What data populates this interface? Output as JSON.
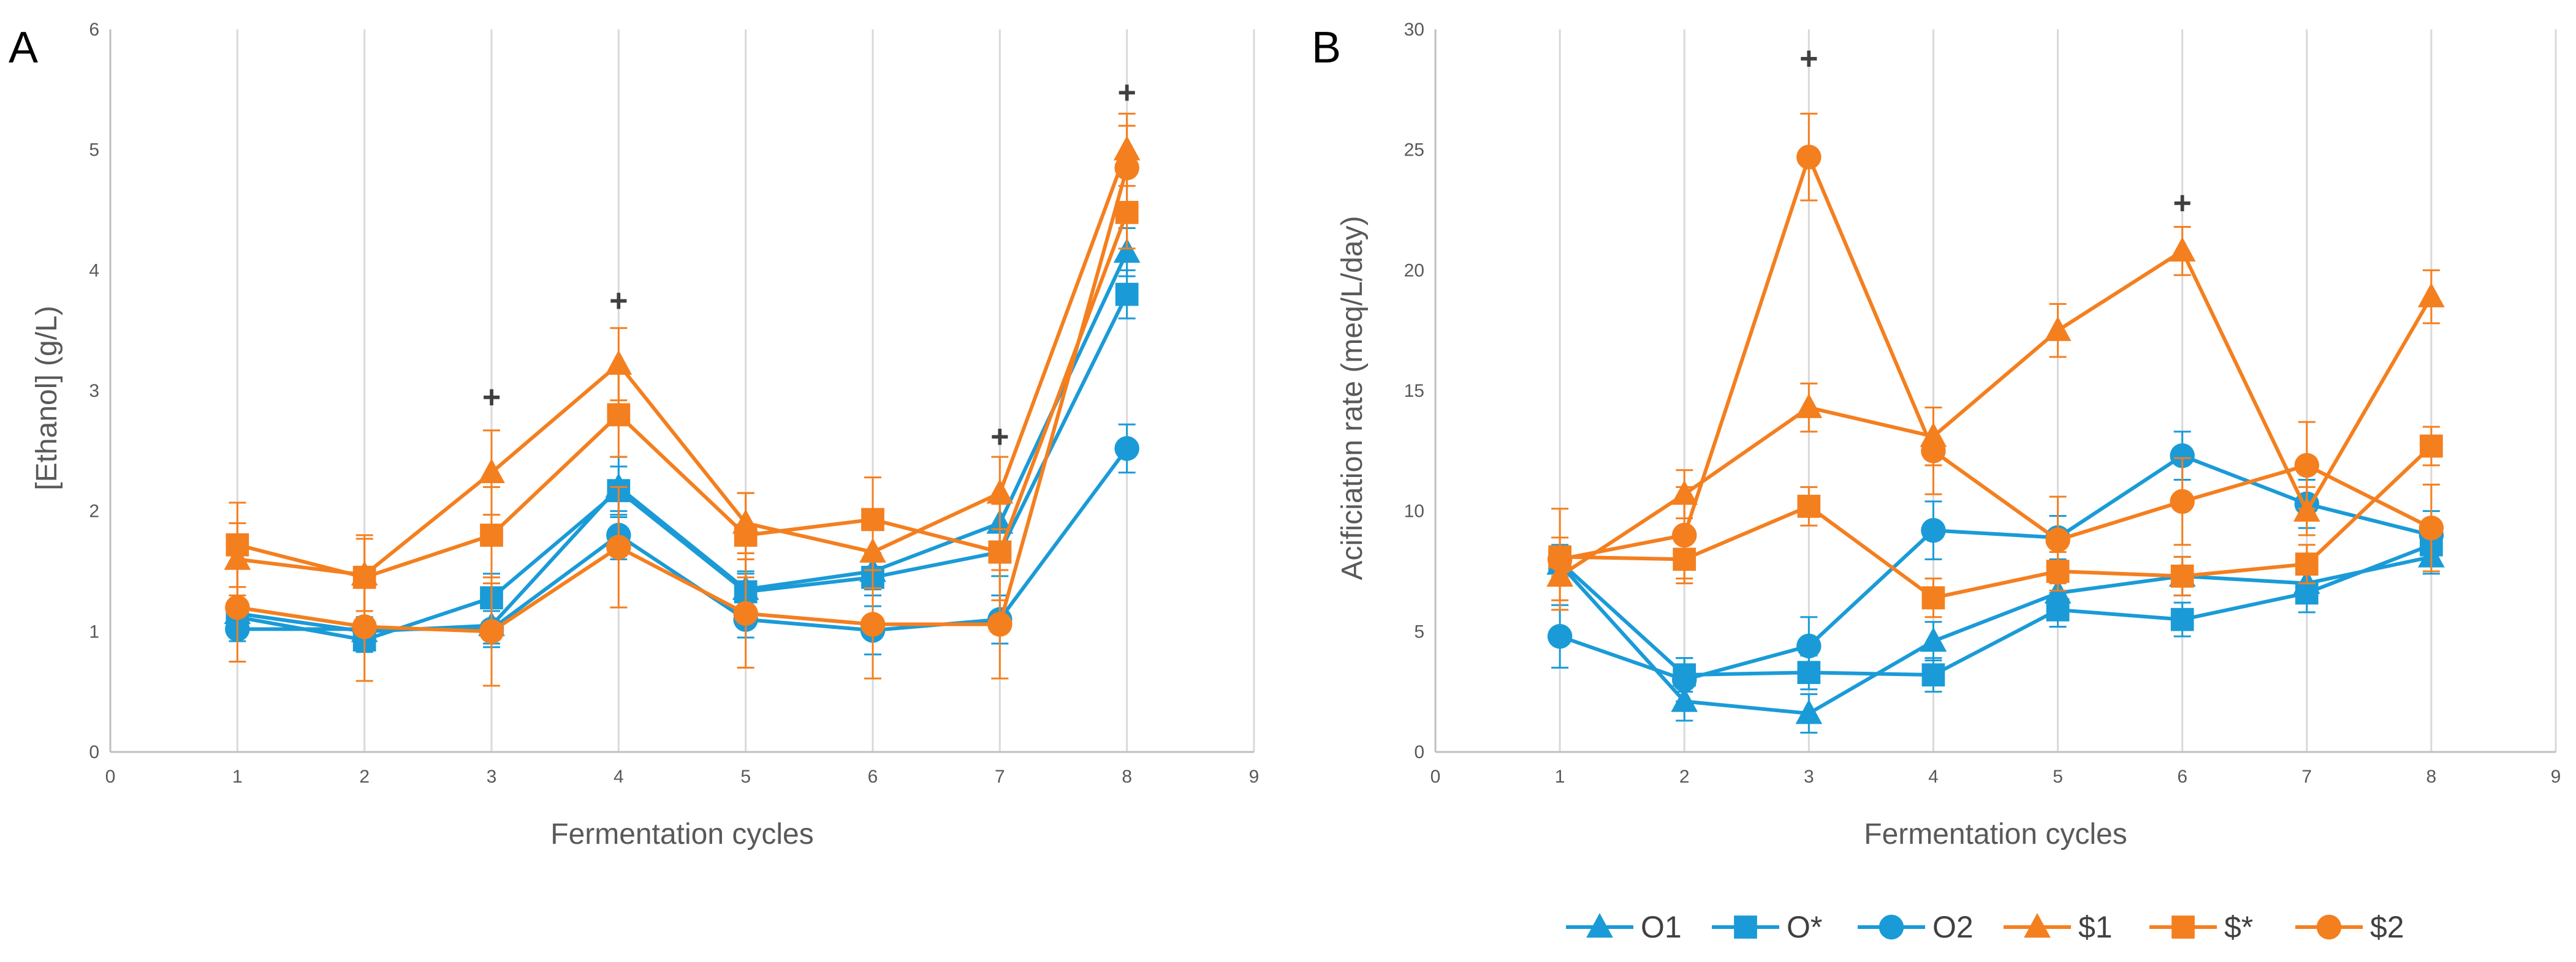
{
  "series_colors": {
    "O1": "#1a9bd7",
    "O*": "#1a9bd7",
    "O2": "#1a9bd7",
    "$1": "#f47f1f",
    "$*": "#f47f1f",
    "$2": "#f47f1f"
  },
  "legend": [
    {
      "name": "O1",
      "marker": "triangle"
    },
    {
      "name": "O*",
      "marker": "square"
    },
    {
      "name": "O2",
      "marker": "circle"
    },
    {
      "name": "$1",
      "marker": "triangle"
    },
    {
      "name": "$*",
      "marker": "square"
    },
    {
      "name": "$2",
      "marker": "circle"
    }
  ],
  "chart_data": [
    {
      "type": "line",
      "panel": "A",
      "xlabel": "Fermentation cycles",
      "ylabel": "[Ethanol] (g/L)",
      "xlim": [
        0,
        9
      ],
      "ylim": [
        0,
        6
      ],
      "xticks": [
        0,
        1,
        2,
        3,
        4,
        5,
        6,
        7,
        8,
        9
      ],
      "yticks": [
        0,
        1,
        2,
        3,
        4,
        5,
        6
      ],
      "grid": "vertical",
      "x": [
        1,
        2,
        3,
        4,
        5,
        6,
        7,
        8
      ],
      "series": [
        {
          "name": "O1",
          "marker": "triangle",
          "values": [
            1.15,
            1.0,
            1.05,
            2.2,
            1.35,
            1.5,
            1.9,
            4.15
          ],
          "errors": [
            0.1,
            0.1,
            0.15,
            0.25,
            0.15,
            0.15,
            0.2,
            0.2
          ]
        },
        {
          "name": "O*",
          "marker": "square",
          "values": [
            1.12,
            0.93,
            1.28,
            2.17,
            1.33,
            1.45,
            1.66,
            3.8
          ],
          "errors": [
            0.1,
            0.1,
            0.2,
            0.2,
            0.15,
            0.15,
            0.2,
            0.2
          ]
        },
        {
          "name": "O2",
          "marker": "circle",
          "values": [
            1.02,
            1.02,
            1.02,
            1.8,
            1.1,
            1.01,
            1.1,
            2.52
          ],
          "errors": [
            0.1,
            0.1,
            0.15,
            0.2,
            0.15,
            0.2,
            0.2,
            0.2
          ]
        },
        {
          "name": "$1",
          "marker": "triangle",
          "values": [
            1.6,
            1.47,
            2.32,
            3.22,
            1.9,
            1.66,
            2.15,
            5.0
          ],
          "errors": [
            0.3,
            0.3,
            0.35,
            0.3,
            0.25,
            0.3,
            0.3,
            0.3
          ]
        },
        {
          "name": "$*",
          "marker": "square",
          "values": [
            1.72,
            1.45,
            1.8,
            2.8,
            1.8,
            1.93,
            1.66,
            4.48
          ],
          "errors": [
            0.35,
            0.35,
            0.4,
            0.35,
            0.35,
            0.35,
            0.4,
            0.3
          ]
        },
        {
          "name": "$2",
          "marker": "circle",
          "values": [
            1.2,
            1.04,
            1.0,
            1.7,
            1.15,
            1.06,
            1.06,
            4.85
          ],
          "errors": [
            0.45,
            0.45,
            0.45,
            0.5,
            0.45,
            0.45,
            0.45,
            0.35
          ]
        }
      ],
      "annotations": [
        {
          "text": "+",
          "x": 3,
          "y": 2.95
        },
        {
          "text": "+",
          "x": 4,
          "y": 3.75
        },
        {
          "text": "+",
          "x": 7,
          "y": 2.62
        },
        {
          "text": "+",
          "x": 8,
          "y": 5.48
        }
      ]
    },
    {
      "type": "line",
      "panel": "B",
      "xlabel": "Fermentation cycles",
      "ylabel": "Acificiation rate (meq/L/day)",
      "xlim": [
        0,
        9
      ],
      "ylim": [
        0,
        30
      ],
      "xticks": [
        0,
        1,
        2,
        3,
        4,
        5,
        6,
        7,
        8,
        9
      ],
      "yticks": [
        0,
        5,
        10,
        15,
        20,
        25,
        30
      ],
      "grid": "vertical",
      "x": [
        1,
        2,
        3,
        4,
        5,
        6,
        7,
        8
      ],
      "series": [
        {
          "name": "O1",
          "marker": "triangle",
          "values": [
            7.8,
            2.1,
            1.6,
            4.6,
            6.6,
            7.3,
            7.0,
            8.1
          ],
          "errors": [
            0.6,
            0.8,
            0.8,
            0.8,
            0.7,
            0.8,
            0.8,
            0.7
          ]
        },
        {
          "name": "O*",
          "marker": "square",
          "values": [
            7.9,
            3.2,
            3.3,
            3.2,
            5.9,
            5.5,
            6.6,
            8.6
          ],
          "errors": [
            0.7,
            0.7,
            0.7,
            0.7,
            0.7,
            0.7,
            0.8,
            0.8
          ]
        },
        {
          "name": "O2",
          "marker": "circle",
          "values": [
            4.8,
            3.0,
            4.4,
            9.2,
            8.9,
            12.3,
            10.3,
            9.0
          ],
          "errors": [
            1.3,
            0.9,
            1.2,
            1.2,
            0.9,
            1.0,
            1.0,
            1.0
          ]
        },
        {
          "name": "$1",
          "marker": "triangle",
          "values": [
            7.3,
            10.7,
            14.3,
            13.1,
            17.5,
            20.8,
            10.0,
            18.9
          ],
          "errors": [
            1.0,
            1.0,
            1.0,
            1.2,
            1.1,
            1.0,
            1.0,
            1.1
          ]
        },
        {
          "name": "$*",
          "marker": "square",
          "values": [
            8.1,
            8.0,
            10.2,
            6.4,
            7.5,
            7.3,
            7.8,
            12.7
          ],
          "errors": [
            0.8,
            0.8,
            0.8,
            0.8,
            0.8,
            0.8,
            0.8,
            0.8
          ]
        },
        {
          "name": "$2",
          "marker": "circle",
          "values": [
            8.0,
            9.0,
            24.7,
            12.5,
            8.8,
            10.4,
            11.9,
            9.3
          ],
          "errors": [
            2.1,
            2.0,
            1.8,
            1.8,
            1.8,
            1.8,
            1.8,
            1.8
          ]
        }
      ],
      "annotations": [
        {
          "text": "+",
          "x": 3,
          "y": 28.8
        },
        {
          "text": "+",
          "x": 6,
          "y": 22.8
        }
      ]
    }
  ]
}
